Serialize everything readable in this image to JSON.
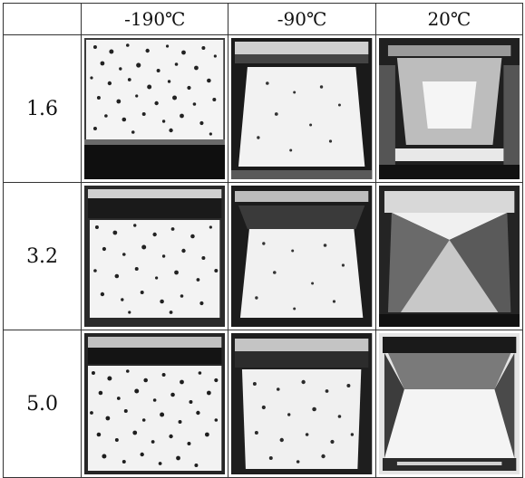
{
  "table": {
    "corner": "",
    "columns": [
      "-190℃",
      "-90℃",
      "20℃"
    ],
    "rows": [
      {
        "label": "1.6",
        "images": [
          "specimen-photo",
          "specimen-photo",
          "specimen-photo"
        ]
      },
      {
        "label": "3.2",
        "images": [
          "specimen-photo",
          "specimen-photo",
          "specimen-photo"
        ]
      },
      {
        "label": "5.0",
        "images": [
          "specimen-photo",
          "specimen-photo",
          "specimen-photo"
        ]
      }
    ]
  },
  "colors": {
    "ink": "#111111",
    "paper": "#f6f6f6",
    "border": "#333333"
  }
}
